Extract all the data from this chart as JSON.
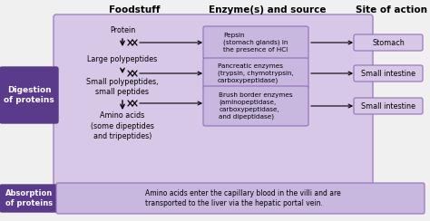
{
  "bg_color": "#f0f0f0",
  "main_bg": "#d8c8e8",
  "purple_box_color": "#5a3a8a",
  "enzyme_box_color": "#c8b8e0",
  "site_box_color": "#d8c8e8",
  "header_foodstuff": "Foodstuff",
  "header_enzyme": "Enzyme(s) and source",
  "header_site": "Site of action",
  "left_label1": "Digestion\nof proteins",
  "left_label2": "Absorption\nof proteins",
  "foodstuff_items": [
    "Protein",
    "Large polypeptides",
    "Small polypeptides,\nsmall peptides",
    "Amino acids\n(some dipeptides\nand tripeptides)"
  ],
  "enzyme_items": [
    "Pepsin\n(stomach glands) in\nthe presence of HCl",
    "Pancreatic enzymes\n(trypsin, chymotrypsin,\ncarboxypeptidase)",
    "Brush border enzymes\n(aminopeptidase,\ncarboxypeptidase,\nand dipeptidase)"
  ],
  "site_items": [
    "Stomach",
    "Small intestine",
    "Small intestine"
  ],
  "absorption_text": "Amino acids enter the capillary blood in the villi and are\ntransported to the liver via the hepatic portal vein.",
  "font_size": 5.8,
  "header_font_size": 7.5
}
